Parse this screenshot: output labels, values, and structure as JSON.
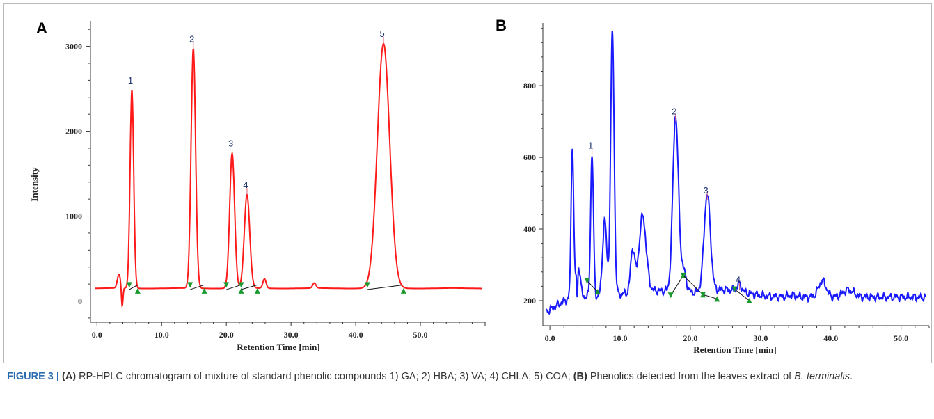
{
  "chart_data": [
    {
      "type": "line",
      "panel_label": "A",
      "xlabel": "Retention Time [min]",
      "ylabel": "Intensity",
      "xlim": [
        -1,
        60
      ],
      "ylim": [
        -250,
        3300
      ],
      "x_ticks": [
        0,
        10,
        20,
        30,
        40,
        50
      ],
      "x_tick_labels": [
        "0.0",
        "10.0",
        "20.0",
        "30.0",
        "40.0",
        "50.0"
      ],
      "y_ticks": [
        0,
        1000,
        2000,
        3000
      ],
      "y_tick_labels": [
        "0",
        "1000",
        "2000",
        "3000"
      ],
      "grid": false,
      "color": "#ff1a1a",
      "baseline": 150,
      "peaks": [
        {
          "label": "1",
          "rt": 5.4,
          "height": 2480
        },
        {
          "label": "2",
          "rt": 14.9,
          "height": 2970
        },
        {
          "label": "3",
          "rt": 20.9,
          "height": 1740
        },
        {
          "label": "4",
          "rt": 23.2,
          "height": 1250
        },
        {
          "label": "5",
          "rt": 44.3,
          "height": 3030
        }
      ],
      "minor_peaks": [
        {
          "rt": 3.4,
          "height": 310
        },
        {
          "rt": 25.9,
          "height": 260
        },
        {
          "rt": 33.6,
          "height": 210
        }
      ]
    },
    {
      "type": "line",
      "panel_label": "B",
      "xlabel": "Retention Time [min]",
      "ylabel": "",
      "xlim": [
        -1,
        54
      ],
      "ylim": [
        130,
        975
      ],
      "x_ticks": [
        0,
        10,
        20,
        30,
        40,
        50
      ],
      "x_tick_labels": [
        "0.0",
        "10.0",
        "20.0",
        "30.0",
        "40.0",
        "50.0"
      ],
      "y_ticks": [
        200,
        400,
        600,
        800
      ],
      "y_tick_labels": [
        "200",
        "400",
        "600",
        "800"
      ],
      "grid": false,
      "color": "#1a1aff",
      "baseline": 210,
      "peaks": [
        {
          "label": "1",
          "rt": 6.0,
          "height": 605
        },
        {
          "label": "2",
          "rt": 17.9,
          "height": 700
        },
        {
          "label": "3",
          "rt": 22.4,
          "height": 480
        },
        {
          "label": "4",
          "rt": 27.0,
          "height": 230
        }
      ],
      "unlabeled_peaks": [
        {
          "rt": 3.2,
          "height": 630
        },
        {
          "rt": 8.9,
          "height": 945
        },
        {
          "rt": 7.8,
          "height": 420
        },
        {
          "rt": 13.2,
          "height": 420
        },
        {
          "rt": 11.8,
          "height": 330
        },
        {
          "rt": 38.8,
          "height": 255
        }
      ]
    }
  ],
  "caption": {
    "figure_label": "FIGURE 3 | ",
    "part_a_label": "(A)",
    "part_a_text": " RP-HPLC chromatogram of mixture of standard phenolic compounds 1) GA; 2) HBA; 3) VA; 4) CHLA; 5) COA; ",
    "part_b_label": "(B)",
    "part_b_text": " Phenolics detected from the leaves extract of ",
    "species": "B. terminalis",
    "end": "."
  }
}
